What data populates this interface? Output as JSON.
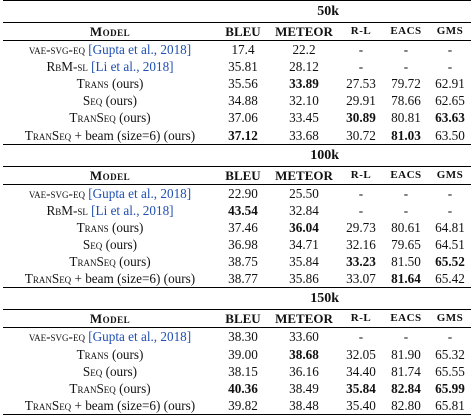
{
  "columns": [
    "Model",
    "BLEU",
    "METEOR",
    "R-L",
    "EACS",
    "GMS"
  ],
  "sections": [
    {
      "size": "50k",
      "rows": [
        {
          "model": "vae-svg-eq",
          "cite": "[Gupta et al., 2018]",
          "suffix": "",
          "bleu": "17.4",
          "meteor": "22.2",
          "rl": "-",
          "eacs": "-",
          "gms": "-",
          "bold": []
        },
        {
          "model": "RbM-sl",
          "cite": "[Li et al., 2018]",
          "suffix": "",
          "bleu": "35.81",
          "meteor": "28.12",
          "rl": "-",
          "eacs": "-",
          "gms": "-",
          "bold": []
        },
        {
          "model": "Trans",
          "cite": "",
          "suffix": " (ours)",
          "bleu": "35.56",
          "meteor": "33.89",
          "rl": "27.53",
          "eacs": "79.72",
          "gms": "62.91",
          "bold": [
            "meteor"
          ]
        },
        {
          "model": "Seq",
          "cite": "",
          "suffix": " (ours)",
          "bleu": "34.88",
          "meteor": "32.10",
          "rl": "29.91",
          "eacs": "78.66",
          "gms": "62.65",
          "bold": []
        },
        {
          "model": "TranSeq",
          "cite": "",
          "suffix": " (ours)",
          "bleu": "37.06",
          "meteor": "33.45",
          "rl": "30.89",
          "eacs": "80.81",
          "gms": "63.63",
          "bold": [
            "rl",
            "gms"
          ]
        },
        {
          "model": "TranSeq",
          "cite": "",
          "suffix": " + beam (size=6) (ours)",
          "bleu": "37.12",
          "meteor": "33.68",
          "rl": "30.72",
          "eacs": "81.03",
          "gms": "63.50",
          "bold": [
            "bleu",
            "eacs"
          ]
        }
      ]
    },
    {
      "size": "100k",
      "rows": [
        {
          "model": "vae-svg-eq",
          "cite": "[Gupta et al., 2018]",
          "suffix": "",
          "bleu": "22.90",
          "meteor": "25.50",
          "rl": "-",
          "eacs": "-",
          "gms": "-",
          "bold": []
        },
        {
          "model": "RbM-sl",
          "cite": "[Li et al., 2018]",
          "suffix": "",
          "bleu": "43.54",
          "meteor": "32.84",
          "rl": "-",
          "eacs": "-",
          "gms": "-",
          "bold": [
            "bleu"
          ]
        },
        {
          "model": "Trans",
          "cite": "",
          "suffix": " (ours)",
          "bleu": "37.46",
          "meteor": "36.04",
          "rl": "29.73",
          "eacs": "80.61",
          "gms": "64.81",
          "bold": [
            "meteor"
          ]
        },
        {
          "model": "Seq",
          "cite": "",
          "suffix": " (ours)",
          "bleu": "36.98",
          "meteor": "34.71",
          "rl": "32.16",
          "eacs": "79.65",
          "gms": "64.51",
          "bold": []
        },
        {
          "model": "TranSeq",
          "cite": "",
          "suffix": " (ours)",
          "bleu": "38.75",
          "meteor": "35.84",
          "rl": "33.23",
          "eacs": "81.50",
          "gms": "65.52",
          "bold": [
            "rl",
            "gms"
          ]
        },
        {
          "model": "TranSeq",
          "cite": "",
          "suffix": " + beam (size=6) (ours)",
          "bleu": "38.77",
          "meteor": "35.86",
          "rl": "33.07",
          "eacs": "81.64",
          "gms": "65.42",
          "bold": [
            "eacs"
          ]
        }
      ]
    },
    {
      "size": "150k",
      "rows": [
        {
          "model": "vae-svg-eq",
          "cite": "[Gupta et al., 2018]",
          "suffix": "",
          "bleu": "38.30",
          "meteor": "33.60",
          "rl": "-",
          "eacs": "-",
          "gms": "-",
          "bold": []
        },
        {
          "model": "Trans",
          "cite": "",
          "suffix": " (ours)",
          "bleu": "39.00",
          "meteor": "38.68",
          "rl": "32.05",
          "eacs": "81.90",
          "gms": "65.32",
          "bold": [
            "meteor"
          ]
        },
        {
          "model": "Seq",
          "cite": "",
          "suffix": " (ours)",
          "bleu": "38.15",
          "meteor": "36.16",
          "rl": "34.40",
          "eacs": "81.74",
          "gms": "65.55",
          "bold": []
        },
        {
          "model": "TranSeq",
          "cite": "",
          "suffix": " (ours)",
          "bleu": "40.36",
          "meteor": "38.49",
          "rl": "35.84",
          "eacs": "82.84",
          "gms": "65.99",
          "bold": [
            "bleu",
            "rl",
            "eacs",
            "gms"
          ]
        },
        {
          "model": "TranSeq",
          "cite": "",
          "suffix": " + beam (size=6) (ours)",
          "bleu": "39.82",
          "meteor": "38.48",
          "rl": "35.40",
          "eacs": "82.80",
          "gms": "65.81",
          "bold": []
        }
      ]
    }
  ]
}
